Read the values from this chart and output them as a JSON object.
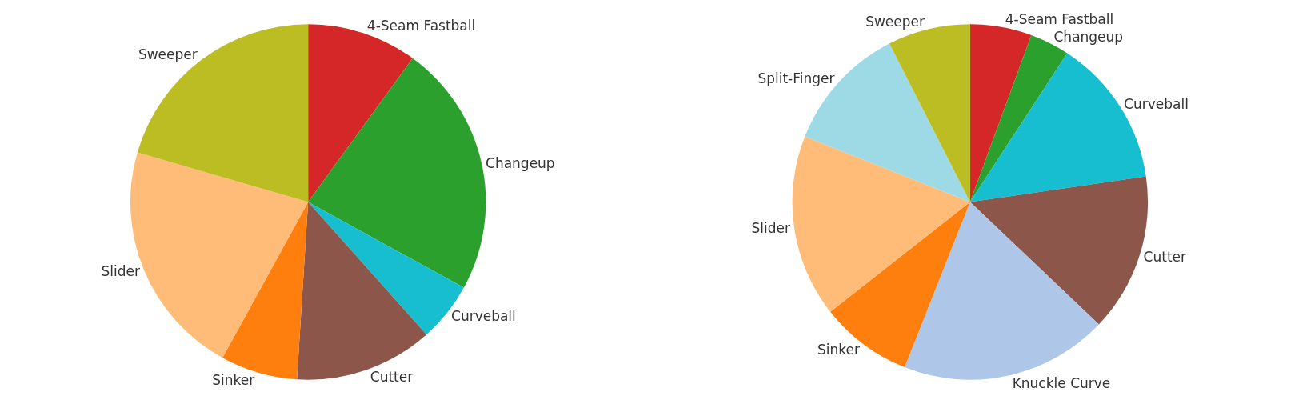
{
  "chart_data": [
    {
      "type": "pie",
      "categories": [
        "4-Seam Fastball",
        "Changeup",
        "Curveball",
        "Cutter",
        "Sinker",
        "Slider",
        "Sweeper"
      ],
      "values": [
        10,
        23,
        5.4,
        12.6,
        7,
        21.5,
        20.5
      ],
      "colors": [
        "#d62728",
        "#2ca02c",
        "#17becf",
        "#8c564b",
        "#ff7f0e",
        "#ffbb78",
        "#bcbd22"
      ],
      "legend": false
    },
    {
      "type": "pie",
      "categories": [
        "4-Seam Fastball",
        "Changeup",
        "Curveball",
        "Cutter",
        "Knuckle Curve",
        "Sinker",
        "Slider",
        "Split-Finger",
        "Sweeper"
      ],
      "values": [
        5.6,
        3.6,
        13.5,
        14.4,
        18.9,
        8.4,
        16.6,
        11.5,
        7.5
      ],
      "colors": [
        "#d62728",
        "#2ca02c",
        "#17becf",
        "#8c564b",
        "#aec7e8",
        "#ff7f0e",
        "#ffbb78",
        "#9edae5",
        "#bcbd22"
      ],
      "legend": false
    }
  ]
}
